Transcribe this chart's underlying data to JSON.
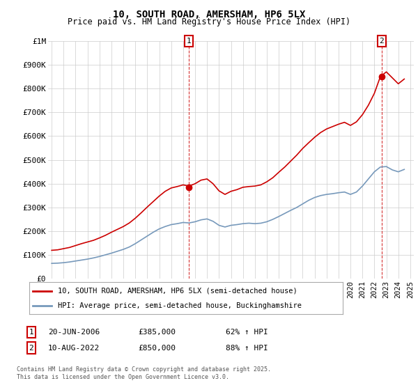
{
  "title": "10, SOUTH ROAD, AMERSHAM, HP6 5LX",
  "subtitle": "Price paid vs. HM Land Registry's House Price Index (HPI)",
  "legend_line1": "10, SOUTH ROAD, AMERSHAM, HP6 5LX (semi-detached house)",
  "legend_line2": "HPI: Average price, semi-detached house, Buckinghamshire",
  "annotation1_label": "1",
  "annotation1_date": "20-JUN-2006",
  "annotation1_price": "£385,000",
  "annotation1_hpi": "62% ↑ HPI",
  "annotation2_label": "2",
  "annotation2_date": "10-AUG-2022",
  "annotation2_price": "£850,000",
  "annotation2_hpi": "88% ↑ HPI",
  "footer": "Contains HM Land Registry data © Crown copyright and database right 2025.\nThis data is licensed under the Open Government Licence v3.0.",
  "line_color_red": "#cc0000",
  "line_color_blue": "#7799bb",
  "marker_color": "#cc0000",
  "vline_color": "#cc0000",
  "annotation_box_color": "#cc0000",
  "background_color": "#ffffff",
  "grid_color": "#cccccc",
  "ylim": [
    0,
    1000000
  ],
  "red_x": [
    1995.0,
    1995.5,
    1996.0,
    1996.5,
    1997.0,
    1997.5,
    1998.0,
    1998.5,
    1999.0,
    1999.5,
    2000.0,
    2000.5,
    2001.0,
    2001.5,
    2002.0,
    2002.5,
    2003.0,
    2003.5,
    2004.0,
    2004.5,
    2005.0,
    2005.5,
    2006.0,
    2006.5,
    2007.0,
    2007.5,
    2008.0,
    2008.5,
    2009.0,
    2009.5,
    2010.0,
    2010.5,
    2011.0,
    2011.5,
    2012.0,
    2012.5,
    2013.0,
    2013.5,
    2014.0,
    2014.5,
    2015.0,
    2015.5,
    2016.0,
    2016.5,
    2017.0,
    2017.5,
    2018.0,
    2018.5,
    2019.0,
    2019.5,
    2020.0,
    2020.5,
    2021.0,
    2021.5,
    2022.0,
    2022.5,
    2023.0,
    2023.5,
    2024.0,
    2024.5
  ],
  "red_y": [
    120000,
    122000,
    127000,
    132000,
    140000,
    148000,
    155000,
    162000,
    172000,
    183000,
    196000,
    208000,
    220000,
    235000,
    255000,
    278000,
    302000,
    325000,
    348000,
    368000,
    382000,
    388000,
    395000,
    390000,
    400000,
    415000,
    420000,
    400000,
    370000,
    355000,
    368000,
    375000,
    385000,
    388000,
    390000,
    395000,
    408000,
    425000,
    448000,
    470000,
    495000,
    520000,
    548000,
    572000,
    595000,
    615000,
    630000,
    640000,
    650000,
    658000,
    645000,
    660000,
    690000,
    730000,
    780000,
    850000,
    870000,
    845000,
    820000,
    840000
  ],
  "blue_x": [
    1995.0,
    1995.5,
    1996.0,
    1996.5,
    1997.0,
    1997.5,
    1998.0,
    1998.5,
    1999.0,
    1999.5,
    2000.0,
    2000.5,
    2001.0,
    2001.5,
    2002.0,
    2002.5,
    2003.0,
    2003.5,
    2004.0,
    2004.5,
    2005.0,
    2005.5,
    2006.0,
    2006.5,
    2007.0,
    2007.5,
    2008.0,
    2008.5,
    2009.0,
    2009.5,
    2010.0,
    2010.5,
    2011.0,
    2011.5,
    2012.0,
    2012.5,
    2013.0,
    2013.5,
    2014.0,
    2014.5,
    2015.0,
    2015.5,
    2016.0,
    2016.5,
    2017.0,
    2017.5,
    2018.0,
    2018.5,
    2019.0,
    2019.5,
    2020.0,
    2020.5,
    2021.0,
    2021.5,
    2022.0,
    2022.5,
    2023.0,
    2023.5,
    2024.0,
    2024.5
  ],
  "blue_y": [
    65000,
    66000,
    68000,
    71000,
    75000,
    79000,
    83000,
    88000,
    94000,
    101000,
    108000,
    116000,
    124000,
    134000,
    148000,
    164000,
    180000,
    196000,
    210000,
    220000,
    228000,
    232000,
    237000,
    235000,
    240000,
    248000,
    252000,
    242000,
    225000,
    218000,
    225000,
    228000,
    232000,
    234000,
    232000,
    234000,
    240000,
    250000,
    262000,
    275000,
    288000,
    300000,
    315000,
    330000,
    342000,
    350000,
    355000,
    358000,
    362000,
    365000,
    355000,
    365000,
    390000,
    420000,
    450000,
    470000,
    472000,
    458000,
    450000,
    460000
  ],
  "sale1_x": 2006.47,
  "sale1_y": 385000,
  "sale2_x": 2022.6,
  "sale2_y": 850000,
  "xtick_years": [
    1995,
    1996,
    1997,
    1998,
    1999,
    2000,
    2001,
    2002,
    2003,
    2004,
    2005,
    2006,
    2007,
    2008,
    2009,
    2010,
    2011,
    2012,
    2013,
    2014,
    2015,
    2016,
    2017,
    2018,
    2019,
    2020,
    2021,
    2022,
    2023,
    2024,
    2025
  ],
  "yticks": [
    0,
    100000,
    200000,
    300000,
    400000,
    500000,
    600000,
    700000,
    800000,
    900000,
    1000000
  ],
  "ytick_labels": [
    "£0",
    "£100K",
    "£200K",
    "£300K",
    "£400K",
    "£500K",
    "£600K",
    "£700K",
    "£800K",
    "£900K",
    "£1M"
  ]
}
